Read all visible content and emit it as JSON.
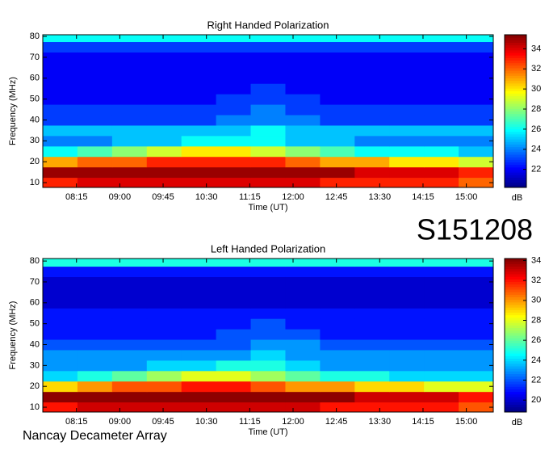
{
  "label": "S151208",
  "footer": "Nancay Decameter Array",
  "chart_data": [
    {
      "type": "heatmap",
      "title": "Right Handed Polarization",
      "xlabel": "Time (UT)",
      "ylabel": "Frequency (MHz)",
      "clabel": "dB",
      "xlim": [
        460,
        928
      ],
      "xticks": [
        {
          "value": 495,
          "label": "08:15"
        },
        {
          "value": 540,
          "label": "09:00"
        },
        {
          "value": 585,
          "label": "09:45"
        },
        {
          "value": 630,
          "label": "10:30"
        },
        {
          "value": 675,
          "label": "11:15"
        },
        {
          "value": 720,
          "label": "12:00"
        },
        {
          "value": 765,
          "label": "12:45"
        },
        {
          "value": 810,
          "label": "13:30"
        },
        {
          "value": 855,
          "label": "14:15"
        },
        {
          "value": 900,
          "label": "15:00"
        }
      ],
      "ylim": [
        7.7,
        80.8
      ],
      "yticks": [
        10,
        20,
        30,
        40,
        50,
        60,
        70,
        80
      ],
      "clim": [
        20.2,
        35.4
      ],
      "cticks": [
        22,
        24,
        26,
        28,
        30,
        32,
        34
      ],
      "x": [
        478,
        514,
        550,
        586,
        622,
        658,
        694,
        730,
        766,
        802,
        838,
        874,
        910
      ],
      "y": [
        10,
        15,
        20,
        25,
        30,
        35,
        40,
        45,
        50,
        55,
        60,
        65,
        70,
        75,
        80
      ],
      "z": [
        [
          33,
          34,
          34,
          34,
          34,
          34,
          34,
          34,
          33,
          33,
          33,
          33,
          32
        ],
        [
          35,
          35,
          35,
          35,
          35,
          35,
          35,
          35,
          35,
          34,
          34,
          34,
          33
        ],
        [
          31,
          32,
          32,
          33,
          33,
          33,
          33,
          32,
          31,
          31,
          30,
          30,
          29
        ],
        [
          26,
          27,
          28,
          29,
          30,
          30,
          29,
          28,
          27,
          26,
          26,
          26,
          25
        ],
        [
          24,
          24,
          25,
          25,
          26,
          26,
          26,
          25,
          25,
          24,
          24,
          24,
          24
        ],
        [
          25,
          25,
          25,
          25,
          25,
          25,
          26,
          25,
          25,
          25,
          25,
          25,
          25
        ],
        [
          23,
          23,
          23,
          23,
          23,
          24,
          24,
          24,
          23,
          23,
          23,
          23,
          23
        ],
        [
          23,
          23,
          23,
          23,
          23,
          23,
          24,
          23,
          23,
          23,
          23,
          23,
          23
        ],
        [
          22,
          22,
          22,
          22,
          22,
          23,
          23,
          23,
          22,
          22,
          22,
          22,
          22
        ],
        [
          22,
          22,
          22,
          22,
          22,
          22,
          23,
          22,
          22,
          22,
          22,
          22,
          22
        ],
        [
          22,
          22,
          22,
          22,
          22,
          22,
          22,
          22,
          22,
          22,
          22,
          22,
          22
        ],
        [
          22,
          22,
          22,
          22,
          22,
          22,
          22,
          22,
          22,
          22,
          22,
          22,
          22
        ],
        [
          22,
          22,
          22,
          22,
          22,
          22,
          22,
          22,
          22,
          22,
          22,
          22,
          22
        ],
        [
          23,
          23,
          23,
          23,
          23,
          23,
          23,
          23,
          23,
          23,
          23,
          23,
          23
        ],
        [
          26,
          26,
          26,
          26,
          26,
          26,
          26,
          26,
          26,
          26,
          26,
          26,
          26
        ]
      ]
    },
    {
      "type": "heatmap",
      "title": "Left Handed Polarization",
      "xlabel": "Time (UT)",
      "ylabel": "Frequency (MHz)",
      "clabel": "dB",
      "xlim": [
        460,
        928
      ],
      "xticks": [
        {
          "value": 495,
          "label": "08:15"
        },
        {
          "value": 540,
          "label": "09:00"
        },
        {
          "value": 585,
          "label": "09:45"
        },
        {
          "value": 630,
          "label": "10:30"
        },
        {
          "value": 675,
          "label": "11:15"
        },
        {
          "value": 720,
          "label": "12:00"
        },
        {
          "value": 765,
          "label": "12:45"
        },
        {
          "value": 810,
          "label": "13:30"
        },
        {
          "value": 855,
          "label": "14:15"
        },
        {
          "value": 900,
          "label": "15:00"
        }
      ],
      "ylim": [
        7.7,
        81.2
      ],
      "yticks": [
        10,
        20,
        30,
        40,
        50,
        60,
        70,
        80
      ],
      "clim": [
        18.8,
        34.2
      ],
      "cticks": [
        20,
        22,
        24,
        26,
        28,
        30,
        32,
        34
      ],
      "x": [
        478,
        514,
        550,
        586,
        622,
        658,
        694,
        730,
        766,
        802,
        838,
        874,
        910
      ],
      "y": [
        10,
        15,
        20,
        25,
        30,
        35,
        40,
        45,
        50,
        55,
        60,
        65,
        70,
        75,
        80
      ],
      "z": [
        [
          32,
          33,
          33,
          33,
          33,
          33,
          33,
          33,
          32,
          32,
          32,
          32,
          31
        ],
        [
          34,
          34,
          34,
          34,
          34,
          34,
          34,
          34,
          34,
          33,
          33,
          33,
          32
        ],
        [
          29,
          30,
          31,
          31,
          32,
          32,
          31,
          30,
          30,
          29,
          29,
          28,
          28
        ],
        [
          24,
          25,
          26,
          27,
          28,
          28,
          27,
          26,
          25,
          25,
          24,
          24,
          24
        ],
        [
          23,
          23,
          23,
          24,
          24,
          25,
          25,
          24,
          23,
          23,
          23,
          23,
          23
        ],
        [
          23,
          23,
          23,
          23,
          23,
          23,
          24,
          23,
          23,
          23,
          23,
          23,
          23
        ],
        [
          22,
          22,
          22,
          22,
          22,
          22,
          23,
          23,
          22,
          22,
          22,
          22,
          22
        ],
        [
          21,
          21,
          21,
          21,
          21,
          22,
          22,
          22,
          21,
          21,
          21,
          21,
          21
        ],
        [
          21,
          21,
          21,
          21,
          21,
          21,
          22,
          21,
          21,
          21,
          21,
          21,
          21
        ],
        [
          21,
          21,
          21,
          21,
          21,
          21,
          21,
          21,
          21,
          21,
          21,
          21,
          21
        ],
        [
          20,
          20,
          20,
          20,
          20,
          20,
          20,
          20,
          20,
          20,
          20,
          20,
          20
        ],
        [
          20,
          20,
          20,
          20,
          20,
          20,
          20,
          20,
          20,
          20,
          20,
          20,
          20
        ],
        [
          20,
          20,
          20,
          20,
          20,
          20,
          20,
          20,
          20,
          20,
          20,
          20,
          20
        ],
        [
          21,
          21,
          21,
          21,
          21,
          21,
          21,
          21,
          21,
          21,
          21,
          21,
          21
        ],
        [
          25,
          25,
          25,
          25,
          25,
          25,
          25,
          25,
          25,
          25,
          25,
          25,
          25
        ]
      ]
    }
  ]
}
